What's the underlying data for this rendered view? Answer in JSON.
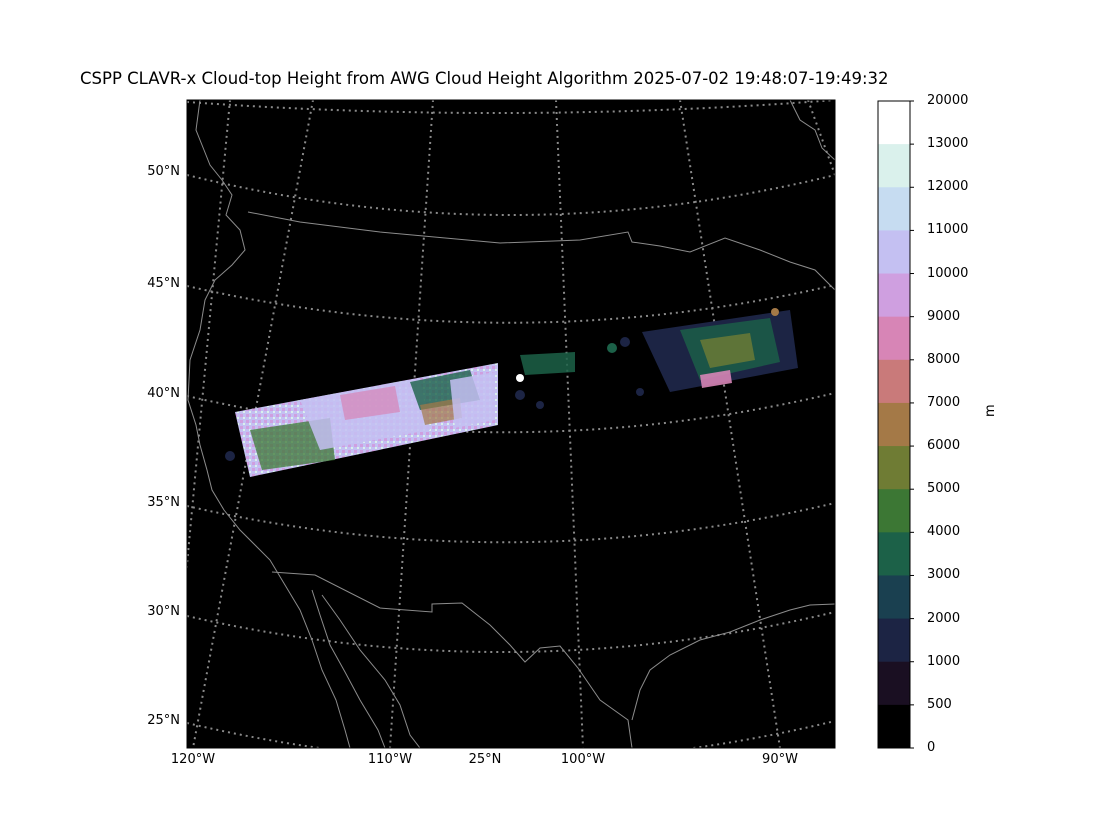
{
  "title": "CSPP CLAVR-x Cloud-top Height from AWG Cloud Height Algorithm 2025-07-02 19:48:07-19:49:32",
  "lat_labels": [
    "50°N",
    "45°N",
    "40°N",
    "35°N",
    "30°N",
    "25°N"
  ],
  "lon_labels": [
    "120°W",
    "110°W",
    "25°N",
    "100°W",
    "90°W"
  ],
  "colorbar": {
    "unit": "m",
    "ticks": [
      "20000",
      "13000",
      "12000",
      "11000",
      "10000",
      "9000",
      "8000",
      "7000",
      "6000",
      "5000",
      "4000",
      "3000",
      "2000",
      "1000",
      "500",
      "0"
    ],
    "colors": [
      "#ffffff",
      "#daf1ec",
      "#c6dcf1",
      "#c4c0f2",
      "#cf9fe0",
      "#d785b6",
      "#c97a7a",
      "#a47947",
      "#6f7c34",
      "#3c7734",
      "#1c6148",
      "#1a4050",
      "#1c2444",
      "#1a0f22",
      "#000000"
    ]
  },
  "colors": {
    "map_background": "#000000",
    "gridline": "#8a8a8a",
    "coastline": "#8c8c8c"
  }
}
